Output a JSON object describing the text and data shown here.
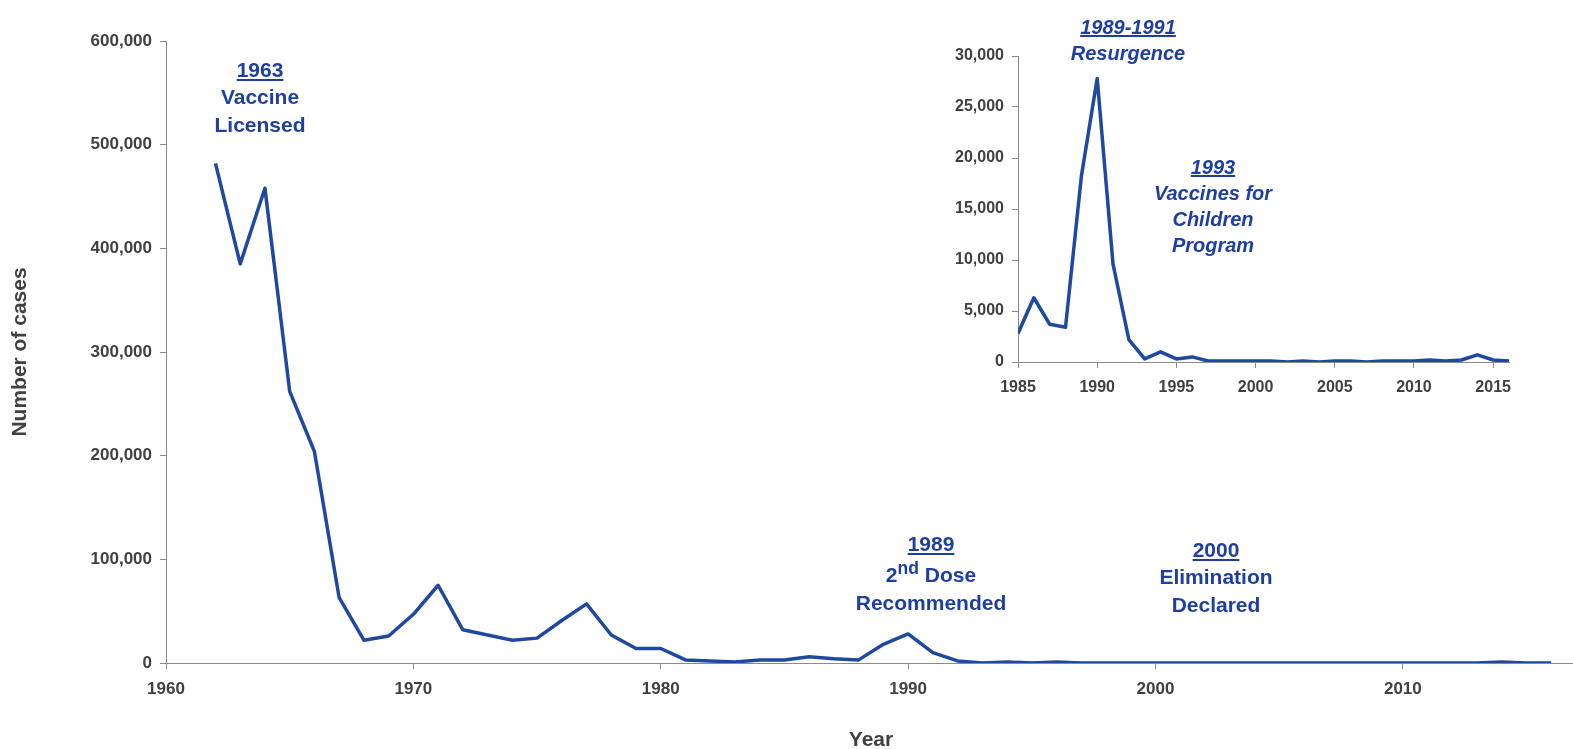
{
  "chart_data": [
    {
      "type": "line",
      "xlabel": "Year",
      "ylabel": "Number of cases",
      "color": "#1f48a0",
      "x": [
        1962,
        1963,
        1964,
        1965,
        1966,
        1967,
        1968,
        1969,
        1970,
        1971,
        1972,
        1973,
        1974,
        1975,
        1976,
        1977,
        1978,
        1979,
        1980,
        1981,
        1982,
        1983,
        1984,
        1985,
        1986,
        1987,
        1988,
        1989,
        1990,
        1991,
        1992,
        1993,
        1994,
        1995,
        1996,
        1997,
        1998,
        1999,
        2000,
        2001,
        2002,
        2003,
        2004,
        2005,
        2006,
        2007,
        2008,
        2009,
        2010,
        2011,
        2012,
        2013,
        2014,
        2015,
        2016
      ],
      "values": [
        482000,
        385000,
        458000,
        262000,
        204000,
        63000,
        22000,
        26000,
        47000,
        75000,
        32000,
        27000,
        22000,
        24000,
        41000,
        57000,
        27000,
        14000,
        14000,
        3000,
        2000,
        1000,
        3000,
        3000,
        6000,
        4000,
        3000,
        18000,
        28000,
        10000,
        2000,
        0,
        1000,
        0,
        1000,
        0,
        0,
        0,
        0,
        0,
        0,
        0,
        0,
        0,
        0,
        0,
        0,
        0,
        0,
        0,
        0,
        0,
        1000,
        0,
        0
      ],
      "xlim": [
        1960,
        2017
      ],
      "xticks": [
        1960,
        1970,
        1980,
        1990,
        2000,
        2010
      ],
      "ylim": [
        0,
        600000
      ],
      "yticks": [
        0,
        {
          "value": 100000,
          "label": "100,000"
        },
        {
          "value": 200000,
          "label": "200,000"
        },
        {
          "value": 300000,
          "label": "300,000"
        },
        {
          "value": 400000,
          "label": "400,000"
        },
        {
          "value": 500000,
          "label": "500,000"
        },
        {
          "value": 600000,
          "label": "600,000"
        }
      ],
      "annotations": [
        "1963\nVaccine\nLicensed",
        "1989\n2$^{nd}$ Dose\nRecommended",
        "2000\nElimination\nDeclared"
      ]
    },
    {
      "type": "line",
      "color": "#1f48a0",
      "x": [
        1985,
        1986,
        1987,
        1988,
        1989,
        1990,
        1991,
        1992,
        1993,
        1994,
        1995,
        1996,
        1997,
        1998,
        1999,
        2000,
        2001,
        2002,
        2003,
        2004,
        2005,
        2006,
        2007,
        2008,
        2009,
        2010,
        2011,
        2012,
        2013,
        2014,
        2015,
        2016
      ],
      "values": [
        2800,
        6300,
        3700,
        3400,
        18200,
        27800,
        9600,
        2200,
        300,
        1000,
        300,
        500,
        100,
        100,
        100,
        100,
        100,
        0,
        100,
        0,
        100,
        100,
        0,
        100,
        100,
        100,
        200,
        100,
        200,
        700,
        200,
        100
      ],
      "xlim": [
        1985,
        2016
      ],
      "xticks": [
        1985,
        1990,
        1995,
        2000,
        2005,
        2010,
        2015
      ],
      "ylim": [
        0,
        30000
      ],
      "yticks": [
        0,
        {
          "value": 5000,
          "label": "5,000"
        },
        {
          "value": 10000,
          "label": "10,000"
        },
        {
          "value": 15000,
          "label": "15,000"
        },
        {
          "value": 20000,
          "label": "20,000"
        },
        {
          "value": 25000,
          "label": "25,000"
        },
        {
          "value": 30000,
          "label": "30,000"
        }
      ],
      "annotations": [
        "1989-1991\nResurgence",
        "1993\nVaccines for\nChildren\nProgram"
      ]
    }
  ]
}
